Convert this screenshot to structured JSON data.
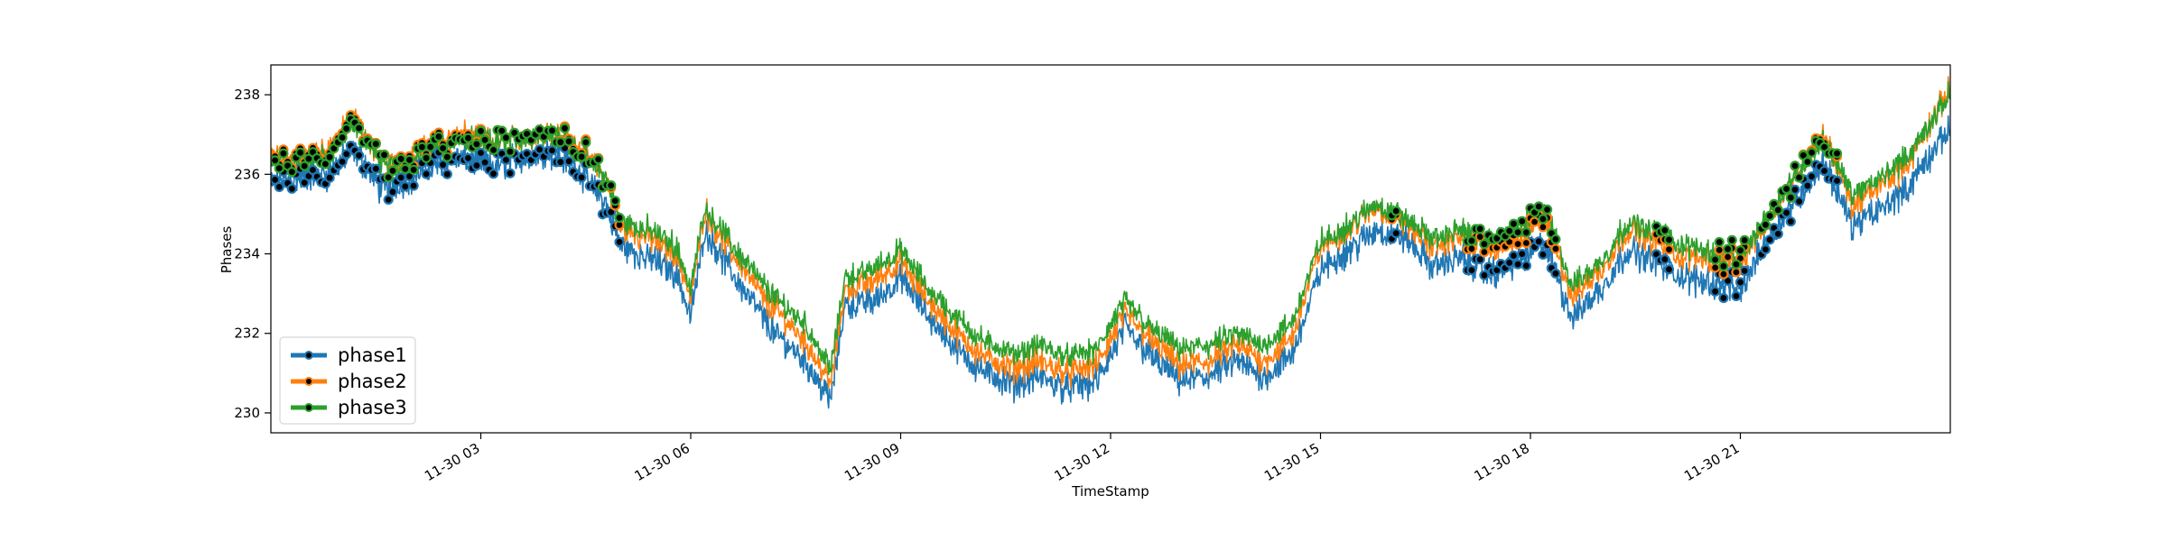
{
  "chart_data": {
    "type": "line",
    "title": "",
    "xlabel": "TimeStamp",
    "ylabel": "Phases",
    "x_range_hours": [
      0.0,
      24.0
    ],
    "ylim": [
      229.5,
      238.75
    ],
    "yticks": [
      230,
      232,
      234,
      236,
      238
    ],
    "ytick_labels": [
      "230",
      "232",
      "234",
      "236",
      "238"
    ],
    "xticks_hours": [
      3,
      6,
      9,
      12,
      15,
      18,
      21
    ],
    "xtick_labels": [
      "11-30 03",
      "11-30 06",
      "11-30 09",
      "11-30 12",
      "11-30 15",
      "11-30 18",
      "11-30 21"
    ],
    "legend_position": "lower-left",
    "grid": false,
    "series": [
      {
        "name": "phase1",
        "color": "#1f77b4"
      },
      {
        "name": "phase2",
        "color": "#ff7f0e"
      },
      {
        "name": "phase3",
        "color": "#2ca02c"
      }
    ],
    "x_hours": [
      0.0,
      0.4,
      0.8,
      1.2,
      1.6,
      2.0,
      2.4,
      2.8,
      3.2,
      3.6,
      4.0,
      4.4,
      4.8,
      5.0,
      5.4,
      5.8,
      6.0,
      6.2,
      6.6,
      7.0,
      7.2,
      7.6,
      8.0,
      8.2,
      8.6,
      9.0,
      9.4,
      9.8,
      10.2,
      10.6,
      11.0,
      11.4,
      11.8,
      12.2,
      12.6,
      13.0,
      13.4,
      13.8,
      14.2,
      14.6,
      15.0,
      15.4,
      15.8,
      16.2,
      16.6,
      17.0,
      17.4,
      17.8,
      18.2,
      18.6,
      19.0,
      19.4,
      19.8,
      20.2,
      20.6,
      21.0,
      21.4,
      21.8,
      22.2,
      22.6,
      23.0,
      23.4,
      24.0
    ],
    "series_values": {
      "phase1": [
        235.8,
        235.9,
        236.0,
        236.6,
        235.6,
        235.9,
        236.3,
        236.4,
        236.2,
        236.4,
        236.6,
        236.1,
        235.2,
        234.2,
        233.9,
        233.5,
        232.4,
        234.6,
        233.5,
        232.5,
        232.0,
        231.4,
        230.3,
        232.7,
        232.8,
        233.4,
        232.4,
        231.6,
        231.0,
        230.7,
        230.9,
        230.6,
        230.8,
        232.1,
        231.4,
        230.8,
        230.9,
        231.3,
        230.9,
        231.5,
        233.6,
        234.1,
        234.6,
        234.4,
        233.7,
        233.9,
        233.5,
        233.8,
        234.3,
        232.4,
        233.1,
        234.1,
        233.8,
        233.4,
        233.3,
        233.1,
        234.4,
        235.4,
        236.3,
        234.7,
        235.1,
        235.7,
        237.2
      ],
      "phase2": [
        236.4,
        236.4,
        236.6,
        237.4,
        236.2,
        236.4,
        236.8,
        237.0,
        236.8,
        236.9,
        237.1,
        236.7,
        235.9,
        234.6,
        234.4,
        234.0,
        232.9,
        235.1,
        234.0,
        233.0,
        232.6,
        231.9,
        230.7,
        233.1,
        233.3,
        233.8,
        232.8,
        232.0,
        231.4,
        231.1,
        231.3,
        231.0,
        231.2,
        232.5,
        231.8,
        231.2,
        231.3,
        231.7,
        231.3,
        231.9,
        234.2,
        234.6,
        235.2,
        234.8,
        234.2,
        234.4,
        234.1,
        234.3,
        235.0,
        232.9,
        233.6,
        234.6,
        234.3,
        233.9,
        233.9,
        233.7,
        235.0,
        236.0,
        237.0,
        235.2,
        235.7,
        236.3,
        238.2
      ],
      "phase3": [
        236.3,
        236.3,
        236.5,
        237.3,
        236.2,
        236.3,
        236.7,
        236.9,
        236.8,
        236.9,
        237.1,
        236.6,
        235.9,
        234.8,
        234.6,
        234.2,
        233.1,
        235.2,
        234.2,
        233.3,
        232.9,
        232.3,
        231.1,
        233.4,
        233.6,
        234.1,
        233.1,
        232.4,
        231.8,
        231.5,
        231.7,
        231.4,
        231.6,
        232.8,
        232.1,
        231.6,
        231.7,
        232.0,
        231.7,
        232.3,
        234.3,
        234.7,
        235.3,
        234.9,
        234.4,
        234.6,
        234.3,
        234.6,
        235.2,
        233.2,
        233.8,
        234.8,
        234.5,
        234.2,
        234.1,
        233.9,
        235.0,
        236.0,
        236.9,
        235.5,
        235.9,
        236.5,
        238.0
      ]
    },
    "highlight_hour_ranges": [
      [
        0.0,
        5.0
      ],
      [
        16.0,
        16.1
      ],
      [
        17.1,
        18.4
      ],
      [
        19.8,
        20.0
      ],
      [
        20.6,
        21.1
      ],
      [
        21.3,
        22.4
      ]
    ]
  }
}
